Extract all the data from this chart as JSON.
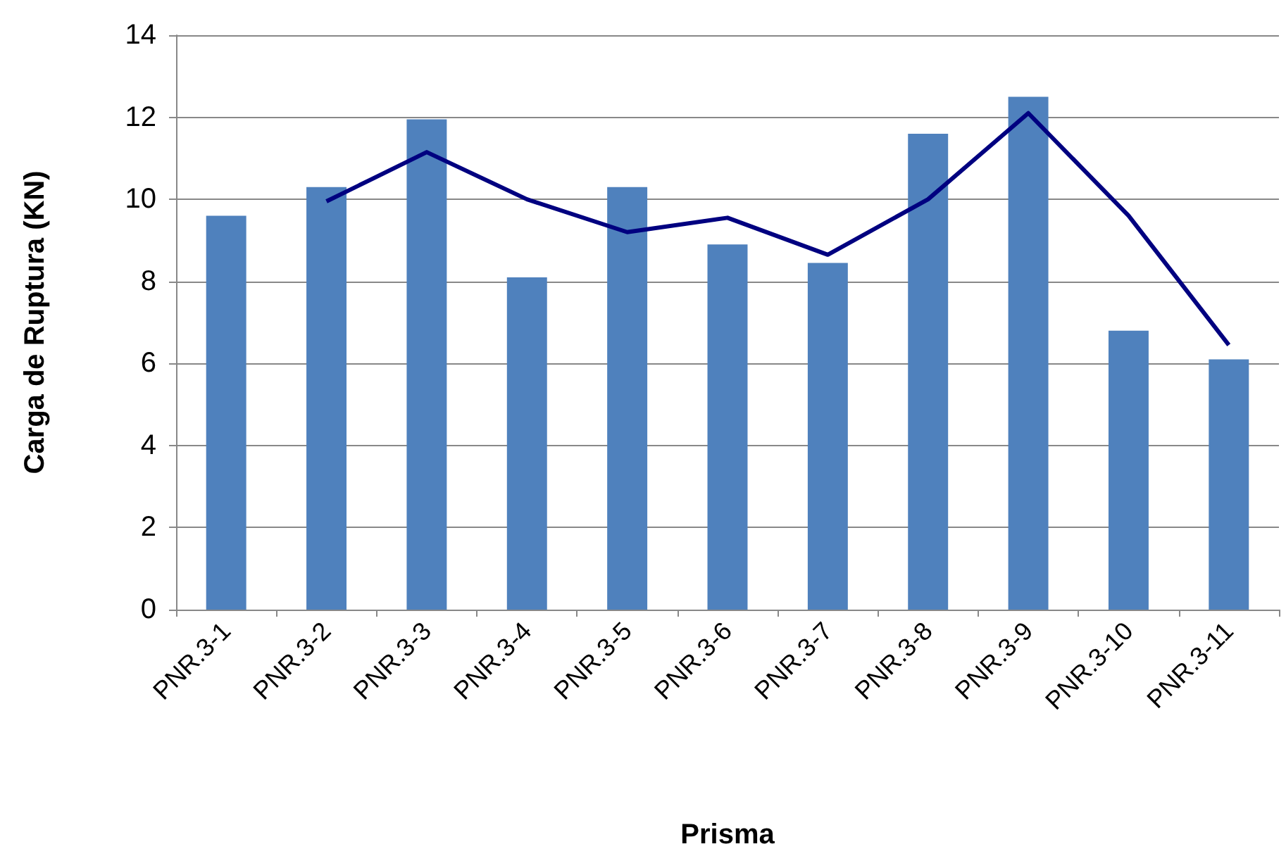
{
  "chart_data": {
    "type": "bar",
    "xlabel": "Prisma",
    "ylabel": "Carga de Ruptura (KN)",
    "categories": [
      "PNR.3-1",
      "PNR.3-2",
      "PNR.3-3",
      "PNR.3-4",
      "PNR.3-5",
      "PNR.3-6",
      "PNR.3-7",
      "PNR.3-8",
      "PNR.3-9",
      "PNR.3-10",
      "PNR.3-11"
    ],
    "series": [
      {
        "color": "#4f81bd",
        "values": [
          9.6,
          10.3,
          11.95,
          8.1,
          10.3,
          8.9,
          8.45,
          11.6,
          12.5,
          6.8,
          6.1
        ]
      },
      {
        "type": "line",
        "color": "#000080",
        "marker": "none",
        "values": [
          null,
          9.95,
          11.15,
          10.0,
          9.2,
          9.55,
          8.65,
          10.0,
          12.1,
          9.6,
          6.45
        ]
      }
    ],
    "ylim": [
      0,
      14
    ],
    "yticks": [
      0,
      2,
      4,
      6,
      8,
      10,
      12,
      14
    ],
    "grid": "y"
  }
}
